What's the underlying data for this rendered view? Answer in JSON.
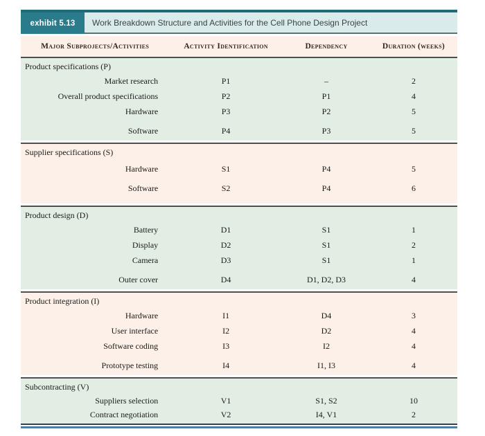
{
  "exhibit": {
    "label": "exhibit 5.13",
    "title": "Work Breakdown Structure and Activities for the Cell Phone Design Project"
  },
  "table": {
    "columns": [
      "Major Subprojects/Activities",
      "Activity Identification",
      "Dependency",
      "Duration (weeks)"
    ],
    "sections": [
      {
        "name": "Product specifications (P)",
        "bg": "green",
        "rows": [
          {
            "activity": "Market research",
            "id": "P1",
            "dependency": "–",
            "duration": "2"
          },
          {
            "activity": "Overall product specifications",
            "id": "P2",
            "dependency": "P1",
            "duration": "4"
          },
          {
            "activity": "Hardware",
            "id": "P3",
            "dependency": "P2",
            "duration": "5"
          },
          {
            "activity": "Software",
            "id": "P4",
            "dependency": "P3",
            "duration": "5"
          }
        ]
      },
      {
        "name": "Supplier specifications (S)",
        "bg": "peach",
        "rows": [
          {
            "activity": "Hardware",
            "id": "S1",
            "dependency": "P4",
            "duration": "5"
          },
          {
            "activity": "Software",
            "id": "S2",
            "dependency": "P4",
            "duration": "6"
          }
        ]
      },
      {
        "name": "Product design (D)",
        "bg": "green",
        "rows": [
          {
            "activity": "Battery",
            "id": "D1",
            "dependency": "S1",
            "duration": "1"
          },
          {
            "activity": "Display",
            "id": "D2",
            "dependency": "S1",
            "duration": "2"
          },
          {
            "activity": "Camera",
            "id": "D3",
            "dependency": "S1",
            "duration": "1"
          },
          {
            "activity": "Outer cover",
            "id": "D4",
            "dependency": "D1, D2, D3",
            "duration": "4"
          }
        ]
      },
      {
        "name": "Product integration (I)",
        "bg": "peach",
        "rows": [
          {
            "activity": "Hardware",
            "id": "I1",
            "dependency": "D4",
            "duration": "3"
          },
          {
            "activity": "User interface",
            "id": "I2",
            "dependency": "D2",
            "duration": "4"
          },
          {
            "activity": "Software coding",
            "id": "I3",
            "dependency": "I2",
            "duration": "4"
          },
          {
            "activity": "Prototype testing",
            "id": "I4",
            "dependency": "I1, I3",
            "duration": "4"
          }
        ]
      },
      {
        "name": "Subcontracting (V)",
        "bg": "green",
        "rows": [
          {
            "activity": "Suppliers selection",
            "id": "V1",
            "dependency": "S1, S2",
            "duration": "10"
          },
          {
            "activity": "Contract negotiation",
            "id": "V2",
            "dependency": "I4, V1",
            "duration": "2"
          }
        ]
      }
    ]
  },
  "colors": {
    "teal_dark": "#2a7b8b",
    "teal_top_bar": "#1f6b79",
    "teal_light": "#d9ebea",
    "peach": "#fcf0e8",
    "green": "#e2eee4",
    "rule_dark": "#4d4d4d",
    "bottom_navy": "#35424d",
    "bottom_blue": "#4e7ca3",
    "header_text": "#33241e"
  }
}
